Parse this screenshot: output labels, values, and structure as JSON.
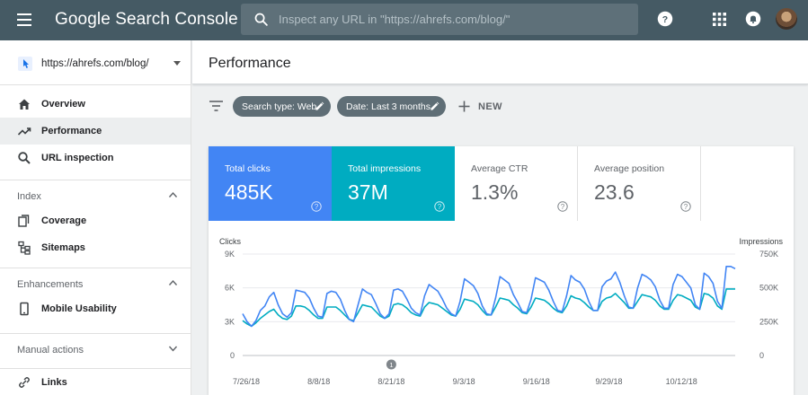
{
  "app": {
    "title": "Google Search Console"
  },
  "search": {
    "placeholder": "Inspect any URL in \"https://ahrefs.com/blog/\""
  },
  "header_icons": [
    "help-icon",
    "apps-icon",
    "notifications-icon",
    "avatar"
  ],
  "property": {
    "label": "https://ahrefs.com/blog/",
    "icon": "property-cursor-icon"
  },
  "sidebar": {
    "items": [
      {
        "label": "Overview",
        "icon": "home-icon",
        "active": false
      },
      {
        "label": "Performance",
        "icon": "trending-up-icon",
        "active": true
      },
      {
        "label": "URL inspection",
        "icon": "search-icon",
        "active": false
      }
    ],
    "sections": [
      {
        "label": "Index",
        "expanded": true,
        "items": [
          {
            "label": "Coverage",
            "icon": "coverage-icon"
          },
          {
            "label": "Sitemaps",
            "icon": "sitemap-icon"
          }
        ]
      },
      {
        "label": "Enhancements",
        "expanded": true,
        "items": [
          {
            "label": "Mobile Usability",
            "icon": "phone-icon"
          }
        ]
      },
      {
        "label": "Manual actions",
        "expanded": false,
        "items": []
      }
    ],
    "partial_item": {
      "label": "Links"
    }
  },
  "page": {
    "title": "Performance"
  },
  "filters": {
    "chips": [
      {
        "label": "Search type: Web"
      },
      {
        "label": "Date: Last 3 months"
      }
    ],
    "new_label": "NEW"
  },
  "metrics": [
    {
      "label": "Total clicks",
      "value": "485K",
      "selected": true,
      "color": "#4285f4"
    },
    {
      "label": "Total impressions",
      "value": "37M",
      "selected": true,
      "color": "#00acc1"
    },
    {
      "label": "Average CTR",
      "value": "1.3%",
      "selected": false
    },
    {
      "label": "Average position",
      "value": "23.6",
      "selected": false
    }
  ],
  "chart_data": {
    "type": "line",
    "ylabel_left": "Clicks",
    "ylabel_right": "Impressions",
    "y_left_ticks": [
      "9K",
      "6K",
      "3K",
      "0"
    ],
    "y_right_ticks": [
      "750K",
      "500K",
      "250K",
      "0"
    ],
    "ylim_left": [
      0,
      9000
    ],
    "ylim_right": [
      0,
      750000
    ],
    "x_tick_labels": [
      "7/26/18",
      "8/8/18",
      "8/21/18",
      "9/3/18",
      "9/16/18",
      "9/29/18",
      "10/12/18"
    ],
    "annotation_marker": "1",
    "annotation_date": "8/21/18",
    "series": [
      {
        "name": "Clicks",
        "color": "#4285f4",
        "axis": "left",
        "values": [
          3700,
          3000,
          2600,
          3100,
          4000,
          4400,
          5200,
          5600,
          4500,
          3700,
          3400,
          3800,
          5800,
          5700,
          5600,
          5100,
          4200,
          3500,
          3400,
          5500,
          5700,
          5600,
          5000,
          4000,
          3200,
          3000,
          4500,
          5900,
          5600,
          5400,
          4600,
          3700,
          3300,
          3700,
          5800,
          5900,
          5700,
          5000,
          4200,
          3800,
          3600,
          5300,
          6300,
          6000,
          5700,
          5000,
          4200,
          3700,
          3500,
          4800,
          6800,
          6500,
          6200,
          5500,
          4400,
          3700,
          3600,
          5100,
          7000,
          6700,
          6400,
          5400,
          4700,
          3900,
          3800,
          5000,
          6900,
          6700,
          6500,
          5800,
          4800,
          4000,
          3900,
          5300,
          7100,
          6700,
          6500,
          5900,
          4800,
          4000,
          4000,
          6100,
          6600,
          6800,
          7400,
          6500,
          5300,
          4300,
          4200,
          6000,
          7200,
          7000,
          6700,
          6100,
          4900,
          4200,
          4200,
          6300,
          7200,
          7000,
          6500,
          6000,
          4500,
          4100,
          7300,
          7000,
          6400,
          4800,
          4200,
          7900,
          7900,
          7700
        ]
      },
      {
        "name": "Impressions",
        "color": "#00acc1",
        "axis": "left",
        "values": [
          3100,
          2800,
          2600,
          2900,
          3300,
          3600,
          3900,
          4100,
          3600,
          3300,
          3200,
          3500,
          4400,
          4400,
          4300,
          4000,
          3600,
          3300,
          3300,
          4300,
          4300,
          4300,
          4000,
          3600,
          3200,
          3100,
          3800,
          4500,
          4400,
          4300,
          3900,
          3500,
          3300,
          3500,
          4500,
          4600,
          4500,
          4200,
          3800,
          3600,
          3500,
          4300,
          4700,
          4600,
          4500,
          4200,
          3900,
          3600,
          3500,
          4100,
          5000,
          4900,
          4800,
          4500,
          4000,
          3600,
          3600,
          4300,
          5100,
          5000,
          4900,
          4500,
          4200,
          3800,
          3700,
          4300,
          5100,
          5000,
          4900,
          4600,
          4200,
          3900,
          3800,
          4400,
          5300,
          5100,
          5000,
          4700,
          4300,
          4000,
          4000,
          4800,
          5100,
          5200,
          5500,
          5100,
          4700,
          4200,
          4200,
          4800,
          5400,
          5300,
          5200,
          4900,
          4400,
          4100,
          4100,
          4900,
          5400,
          5300,
          5100,
          4900,
          4300,
          4100,
          5500,
          5400,
          5100,
          4400,
          4100,
          5900,
          5900,
          5900
        ]
      }
    ],
    "grid": true,
    "legend": "none"
  }
}
